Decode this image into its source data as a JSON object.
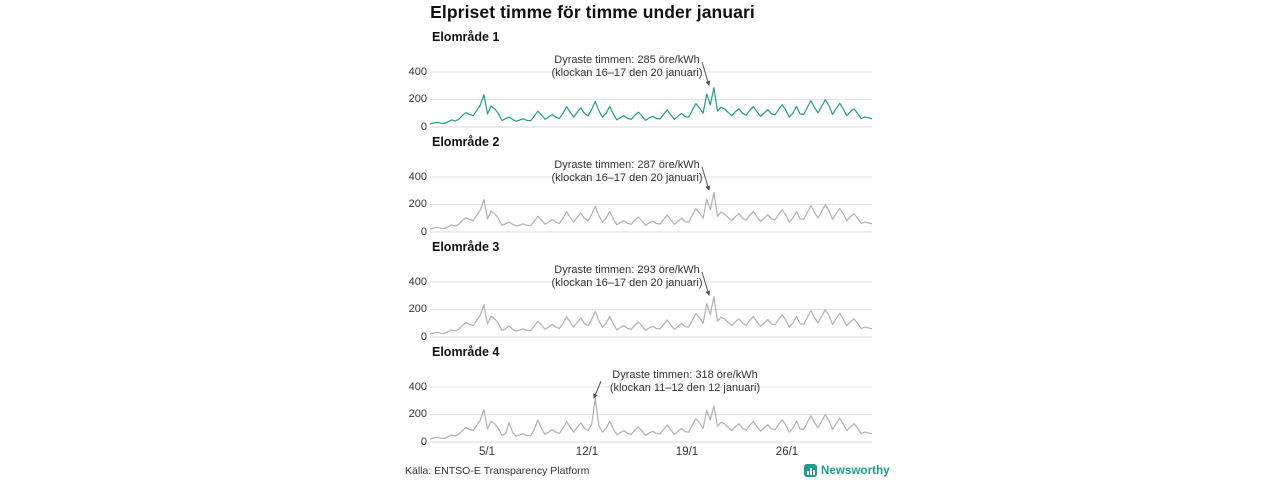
{
  "title": "Elpriset timme för timme under januari",
  "y_ticks": [
    "400",
    "200",
    "0"
  ],
  "x_ticks": [
    "5/1",
    "12/1",
    "19/1",
    "26/1"
  ],
  "footer": {
    "source": "Källa: ENTSO-E Transparency Platform",
    "brand": "Newsworthy"
  },
  "colors": {
    "accent": "#1b9e8c",
    "gray_line": "#b0b0b0",
    "grid": "#e2e2e2",
    "title_text": "#111111",
    "body_text": "#333333"
  },
  "chart_data": {
    "type": "line",
    "title": "Elpriset timme för timme under januari",
    "unit": "öre/kWh",
    "x_range": "1–31 januari, timvärden (samplade var 6:e timme)",
    "ylim": [
      0,
      450
    ],
    "y_tick_values": [
      400,
      200,
      0
    ],
    "x_tick_days": [
      5,
      12,
      19,
      26
    ],
    "grid": true,
    "legend_position": "none",
    "panels": [
      {
        "label": "Elområde 1",
        "color": "#1b9e8c",
        "annotation": {
          "line1": "Dyraste timmen: 285 öre/kWh",
          "line2": "(klockan 16–17 den 20 januari)",
          "max_value": 285,
          "max_hour": "16–17",
          "max_day": "20 januari"
        },
        "values": [
          22,
          30,
          34,
          28,
          26,
          38,
          52,
          44,
          56,
          84,
          104,
          92,
          82,
          120,
          160,
          235,
          95,
          152,
          132,
          100,
          48,
          60,
          72,
          55,
          42,
          52,
          60,
          48,
          46,
          78,
          115,
          88,
          56,
          72,
          92,
          72,
          62,
          100,
          148,
          108,
          72,
          108,
          138,
          98,
          82,
          128,
          186,
          118,
          72,
          100,
          150,
          95,
          52,
          70,
          82,
          62,
          56,
          86,
          108,
          80,
          48,
          66,
          78,
          62,
          58,
          92,
          124,
          88,
          55,
          78,
          100,
          75,
          72,
          122,
          170,
          140,
          100,
          240,
          160,
          285,
          115,
          145,
          130,
          105,
          82,
          112,
          132,
          100,
          86,
          122,
          148,
          110,
          78,
          102,
          126,
          96,
          88,
          128,
          162,
          122,
          72,
          102,
          150,
          95,
          92,
          142,
          192,
          142,
          102,
          152,
          198,
          158,
          92,
          132,
          172,
          130,
          82,
          112,
          132,
          100,
          62,
          72,
          66,
          60
        ]
      },
      {
        "label": "Elområde 2",
        "color": "#b0b0b0",
        "annotation": {
          "line1": "Dyraste timmen: 287 öre/kWh",
          "line2": "(klockan 16–17 den 20 januari)",
          "max_value": 287,
          "max_hour": "16–17",
          "max_day": "20 januari"
        },
        "values": [
          22,
          30,
          34,
          28,
          26,
          38,
          52,
          44,
          56,
          84,
          104,
          92,
          82,
          120,
          160,
          235,
          95,
          152,
          132,
          100,
          48,
          60,
          72,
          55,
          42,
          52,
          60,
          48,
          46,
          78,
          115,
          88,
          56,
          72,
          92,
          72,
          62,
          100,
          148,
          108,
          72,
          108,
          138,
          98,
          82,
          128,
          186,
          118,
          72,
          100,
          150,
          95,
          52,
          70,
          82,
          62,
          56,
          86,
          108,
          80,
          48,
          66,
          78,
          62,
          58,
          92,
          124,
          88,
          55,
          78,
          100,
          75,
          72,
          122,
          170,
          140,
          100,
          240,
          160,
          287,
          115,
          145,
          130,
          105,
          82,
          112,
          132,
          100,
          86,
          122,
          148,
          110,
          78,
          102,
          126,
          96,
          88,
          128,
          162,
          122,
          72,
          102,
          150,
          95,
          92,
          142,
          192,
          142,
          102,
          152,
          198,
          158,
          92,
          132,
          172,
          130,
          82,
          112,
          132,
          100,
          62,
          72,
          66,
          60
        ]
      },
      {
        "label": "Elområde 3",
        "color": "#b0b0b0",
        "annotation": {
          "line1": "Dyraste timmen: 293 öre/kWh",
          "line2": "(klockan 16–17 den 20 januari)",
          "max_value": 293,
          "max_hour": "16–17",
          "max_day": "20 januari"
        },
        "values": [
          22,
          30,
          34,
          28,
          26,
          38,
          52,
          44,
          56,
          84,
          104,
          92,
          82,
          120,
          160,
          235,
          95,
          152,
          132,
          100,
          48,
          60,
          80,
          55,
          42,
          52,
          60,
          48,
          46,
          78,
          115,
          88,
          56,
          72,
          92,
          72,
          62,
          100,
          148,
          108,
          72,
          108,
          138,
          98,
          82,
          128,
          186,
          118,
          72,
          100,
          150,
          95,
          52,
          70,
          82,
          62,
          56,
          86,
          108,
          80,
          48,
          66,
          78,
          62,
          58,
          92,
          124,
          88,
          55,
          78,
          100,
          75,
          72,
          122,
          170,
          140,
          100,
          242,
          162,
          293,
          115,
          145,
          130,
          105,
          82,
          112,
          132,
          100,
          86,
          122,
          148,
          110,
          78,
          102,
          126,
          96,
          88,
          128,
          162,
          122,
          72,
          102,
          150,
          95,
          92,
          142,
          192,
          142,
          102,
          152,
          198,
          158,
          92,
          132,
          172,
          130,
          82,
          112,
          132,
          100,
          62,
          72,
          66,
          60
        ]
      },
      {
        "label": "Elområde 4",
        "color": "#b0b0b0",
        "annotation": {
          "line1": "Dyraste timmen: 318 öre/kWh",
          "line2": "(klockan 11–12 den 12 januari)",
          "max_value": 318,
          "max_hour": "11–12",
          "max_day": "12 januari"
        },
        "values": [
          22,
          30,
          34,
          28,
          26,
          38,
          52,
          44,
          56,
          84,
          104,
          92,
          82,
          120,
          160,
          235,
          95,
          152,
          132,
          100,
          48,
          60,
          140,
          70,
          42,
          52,
          60,
          48,
          46,
          90,
          160,
          100,
          56,
          72,
          92,
          72,
          62,
          100,
          148,
          108,
          72,
          108,
          138,
          98,
          82,
          128,
          318,
          118,
          72,
          100,
          150,
          95,
          52,
          70,
          82,
          62,
          56,
          86,
          108,
          80,
          48,
          66,
          78,
          62,
          58,
          92,
          124,
          88,
          55,
          78,
          100,
          75,
          72,
          122,
          170,
          140,
          100,
          230,
          160,
          262,
          115,
          145,
          130,
          105,
          82,
          112,
          132,
          100,
          86,
          122,
          148,
          110,
          78,
          102,
          126,
          96,
          88,
          128,
          162,
          122,
          72,
          102,
          150,
          95,
          92,
          142,
          192,
          142,
          102,
          152,
          198,
          158,
          92,
          132,
          172,
          130,
          82,
          112,
          132,
          100,
          62,
          72,
          66,
          60
        ]
      }
    ]
  }
}
